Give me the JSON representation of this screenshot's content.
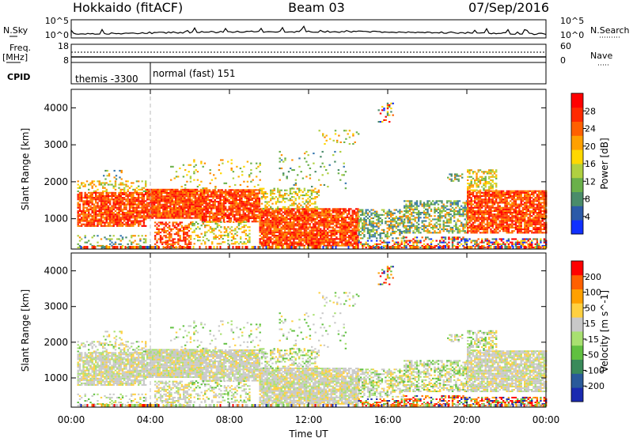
{
  "header": {
    "station": "Hokkaido (fitACF)",
    "beam": "Beam 03",
    "date": "07/Sep/2016"
  },
  "noise_panel": {
    "left_label": "N.Sky",
    "right_label": "N.Search",
    "left_ticks": [
      "10^5",
      "10^0"
    ],
    "right_ticks": [
      "10^5",
      "10^0"
    ]
  },
  "freq_panel": {
    "left_label": "Freq.",
    "left_unit": "[MHz]",
    "left_ticks": [
      "18",
      "8"
    ],
    "right_label": "Nave",
    "right_ticks": [
      "60",
      "0"
    ]
  },
  "cpid_panel": {
    "label": "CPID",
    "modes": [
      {
        "name": "themis -3300",
        "start_hour": 0,
        "end_hour": 4
      },
      {
        "name": "normal (fast) 151",
        "start_hour": 4,
        "end_hour": 24
      }
    ]
  },
  "chart_data": [
    {
      "type": "heatmap",
      "name": "power",
      "ylabel": "Slant Range [km]",
      "xlim": [
        0,
        24
      ],
      "ylim": [
        180,
        4500
      ],
      "y_ticks": [
        "1000",
        "2000",
        "3000",
        "4000"
      ],
      "colorbar": {
        "label": "Power [dB]",
        "ticks": [
          "4",
          "8",
          "12",
          "16",
          "20",
          "24",
          "28"
        ],
        "colors": [
          "#1030ff",
          "#2c5aa8",
          "#4a8c6a",
          "#6ab04a",
          "#b0d040",
          "#ffd800",
          "#ffa000",
          "#ff6000",
          "#ff2a00",
          "#ff0000"
        ]
      },
      "features": [
        {
          "start_hour": 0.4,
          "end_hour": 3.8,
          "range_km": [
            800,
            1700
          ],
          "level": "high"
        },
        {
          "start_hour": 3.8,
          "end_hour": 9.5,
          "range_km": [
            900,
            1800
          ],
          "level": "high"
        },
        {
          "start_hour": 9.5,
          "end_hour": 14.5,
          "range_km": [
            300,
            1300
          ],
          "level": "high"
        },
        {
          "start_hour": 14.5,
          "end_hour": 16.8,
          "range_km": [
            500,
            1200
          ],
          "level": "low"
        },
        {
          "start_hour": 16.8,
          "end_hour": 20.0,
          "range_km": [
            600,
            1500
          ],
          "level": "medium"
        },
        {
          "start_hour": 20.0,
          "end_hour": 24.0,
          "range_km": [
            600,
            1800
          ],
          "level": "high"
        }
      ]
    },
    {
      "type": "heatmap",
      "name": "velocity",
      "ylabel": "Slant Range [km]",
      "xlabel": "Time UT",
      "xlim": [
        0,
        24
      ],
      "ylim": [
        180,
        4500
      ],
      "y_ticks": [
        "1000",
        "2000",
        "3000",
        "4000"
      ],
      "x_ticks": [
        "00:00",
        "04:00",
        "08:00",
        "12:00",
        "16:00",
        "20:00",
        "00:00"
      ],
      "colorbar": {
        "label": "Velocity [m s^-1]",
        "ticks": [
          "200",
          "100",
          "50",
          "15",
          "-15",
          "-50",
          "-100",
          "-200"
        ],
        "colors": [
          "#1a2ab0",
          "#2a5a9a",
          "#3a8a5a",
          "#60c040",
          "#a8e070",
          "#c8c8c8",
          "#ffd040",
          "#ffa000",
          "#ff6000",
          "#ff0000"
        ]
      }
    }
  ]
}
